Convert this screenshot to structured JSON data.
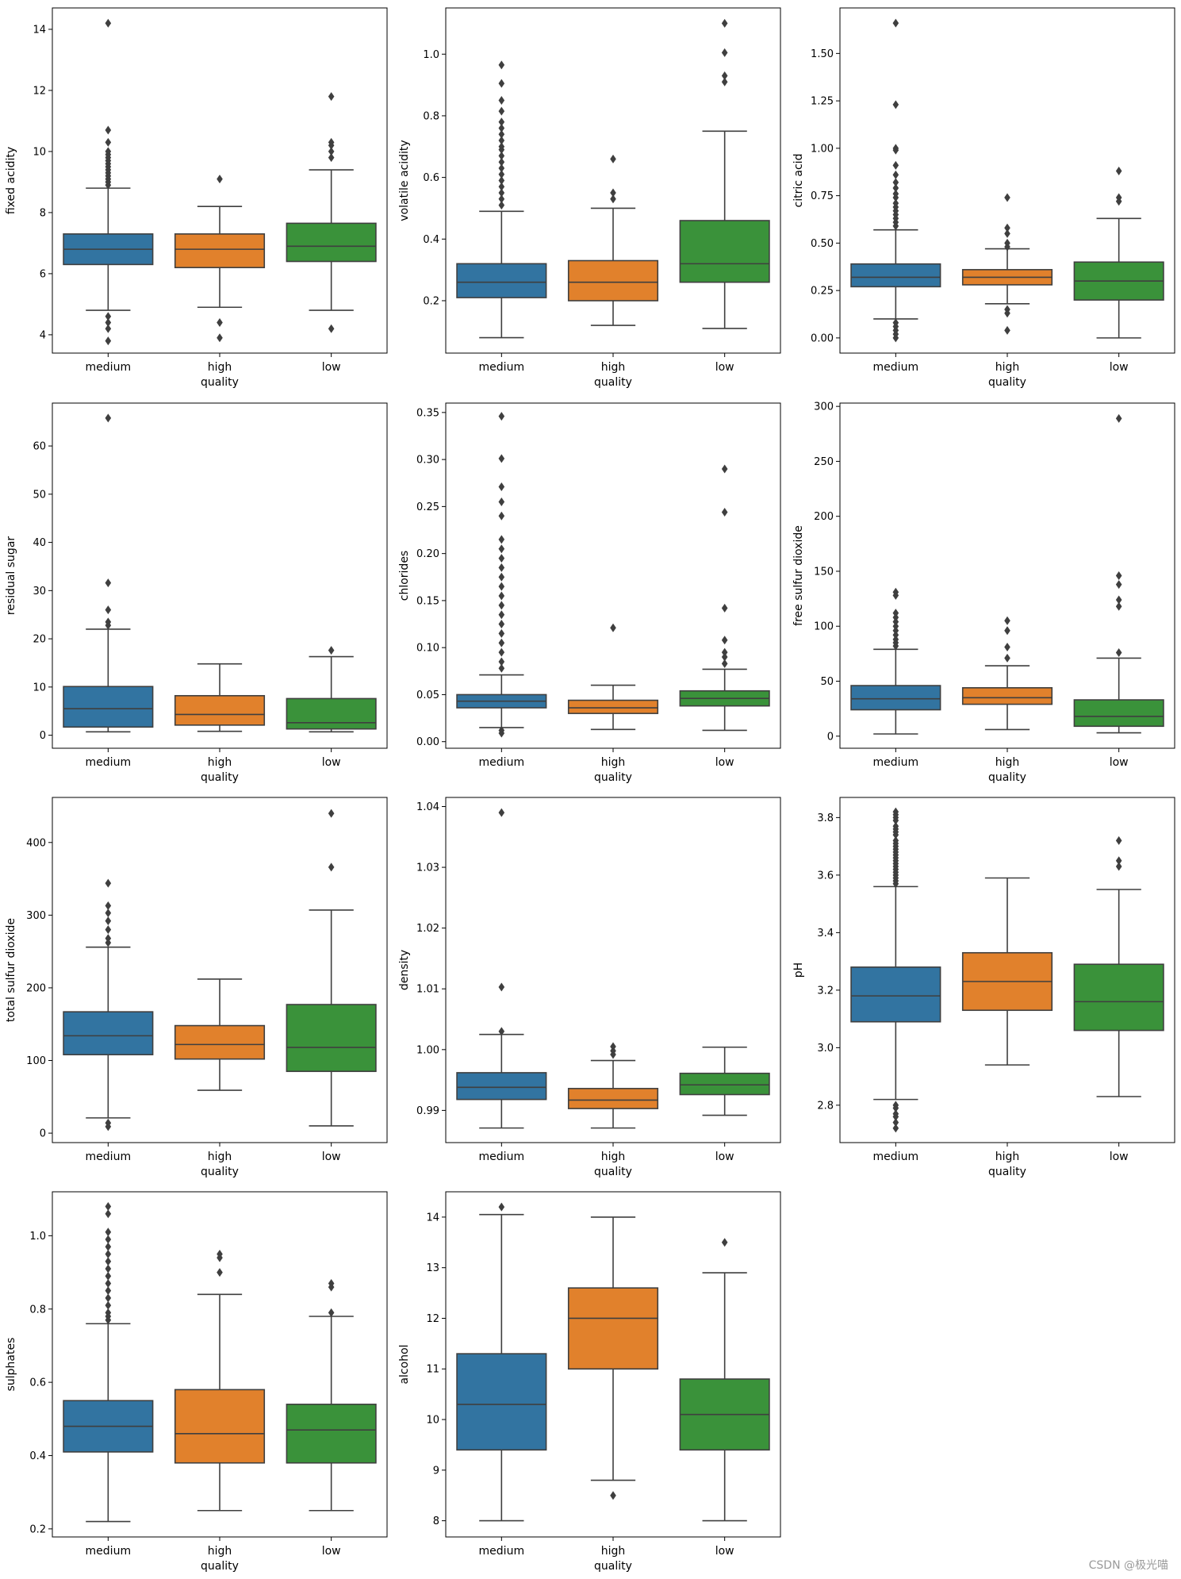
{
  "figure": {
    "watermark": "CSDN @极光喵",
    "palette": {
      "medium": "#3274a1",
      "high": "#e1812c",
      "low": "#3a923a",
      "line": "#3f3f3f",
      "frame": "#000000"
    }
  },
  "chart_data": [
    {
      "type": "box",
      "title": "",
      "xlabel": "quality",
      "ylabel": "fixed acidity",
      "categories": [
        "medium",
        "high",
        "low"
      ],
      "ylim": [
        3.4,
        14.7
      ],
      "yticks": [
        4,
        6,
        8,
        10,
        12,
        14
      ],
      "tick_labels": [
        "4",
        "6",
        "8",
        "10",
        "12",
        "14"
      ],
      "boxes": [
        {
          "q1": 6.3,
          "median": 6.8,
          "q3": 7.3,
          "whisker_low": 4.8,
          "whisker_high": 8.8,
          "outliers": [
            14.2,
            10.7,
            10.3,
            10.0,
            9.9,
            9.8,
            9.7,
            9.6,
            9.5,
            9.4,
            9.3,
            9.2,
            9.1,
            9.0,
            8.9,
            4.6,
            4.4,
            4.2,
            3.8
          ]
        },
        {
          "q1": 6.2,
          "median": 6.8,
          "q3": 7.3,
          "whisker_low": 4.9,
          "whisker_high": 8.2,
          "outliers": [
            9.1,
            4.4,
            3.9
          ]
        },
        {
          "q1": 6.4,
          "median": 6.9,
          "q3": 7.65,
          "whisker_low": 4.8,
          "whisker_high": 9.4,
          "outliers": [
            11.8,
            10.3,
            10.2,
            10.0,
            9.8,
            4.2
          ]
        }
      ]
    },
    {
      "type": "box",
      "title": "",
      "xlabel": "quality",
      "ylabel": "volatile acidity",
      "categories": [
        "medium",
        "high",
        "low"
      ],
      "ylim": [
        0.03,
        1.15
      ],
      "yticks": [
        0.2,
        0.4,
        0.6,
        0.8,
        1.0
      ],
      "tick_labels": [
        "0.2",
        "0.4",
        "0.6",
        "0.8",
        "1.0"
      ],
      "boxes": [
        {
          "q1": 0.21,
          "median": 0.26,
          "q3": 0.32,
          "whisker_low": 0.08,
          "whisker_high": 0.49,
          "outliers": [
            0.965,
            0.905,
            0.85,
            0.815,
            0.78,
            0.76,
            0.74,
            0.72,
            0.7,
            0.69,
            0.67,
            0.65,
            0.63,
            0.61,
            0.59,
            0.57,
            0.55,
            0.53,
            0.51
          ]
        },
        {
          "q1": 0.2,
          "median": 0.26,
          "q3": 0.33,
          "whisker_low": 0.12,
          "whisker_high": 0.5,
          "outliers": [
            0.66,
            0.55,
            0.53
          ]
        },
        {
          "q1": 0.26,
          "median": 0.32,
          "q3": 0.46,
          "whisker_low": 0.11,
          "whisker_high": 0.75,
          "outliers": [
            1.1,
            1.005,
            0.93,
            0.91
          ]
        }
      ]
    },
    {
      "type": "box",
      "title": "",
      "xlabel": "quality",
      "ylabel": "citric acid",
      "categories": [
        "medium",
        "high",
        "low"
      ],
      "ylim": [
        -0.08,
        1.74
      ],
      "yticks": [
        0.0,
        0.25,
        0.5,
        0.75,
        1.0,
        1.25,
        1.5
      ],
      "tick_labels": [
        "0.00",
        "0.25",
        "0.50",
        "0.75",
        "1.00",
        "1.25",
        "1.50"
      ],
      "boxes": [
        {
          "q1": 0.27,
          "median": 0.32,
          "q3": 0.39,
          "whisker_low": 0.1,
          "whisker_high": 0.57,
          "outliers": [
            1.66,
            1.23,
            1.0,
            0.99,
            0.91,
            0.86,
            0.82,
            0.79,
            0.76,
            0.74,
            0.71,
            0.69,
            0.67,
            0.65,
            0.63,
            0.61,
            0.59,
            0.08,
            0.06,
            0.04,
            0.02,
            0.0
          ]
        },
        {
          "q1": 0.28,
          "median": 0.32,
          "q3": 0.36,
          "whisker_low": 0.18,
          "whisker_high": 0.47,
          "outliers": [
            0.74,
            0.58,
            0.55,
            0.5,
            0.48,
            0.15,
            0.13,
            0.04
          ]
        },
        {
          "q1": 0.2,
          "median": 0.3,
          "q3": 0.4,
          "whisker_low": 0.0,
          "whisker_high": 0.63,
          "outliers": [
            0.88,
            0.74,
            0.72
          ]
        }
      ]
    },
    {
      "type": "box",
      "title": "",
      "xlabel": "quality",
      "ylabel": "residual sugar",
      "categories": [
        "medium",
        "high",
        "low"
      ],
      "ylim": [
        -2.7,
        68.9
      ],
      "yticks": [
        0,
        10,
        20,
        30,
        40,
        50,
        60
      ],
      "tick_labels": [
        "0",
        "10",
        "20",
        "30",
        "40",
        "50",
        "60"
      ],
      "boxes": [
        {
          "q1": 1.7,
          "median": 5.5,
          "q3": 10.1,
          "whisker_low": 0.7,
          "whisker_high": 22.0,
          "outliers": [
            65.8,
            31.6,
            26.0,
            23.5,
            22.8
          ]
        },
        {
          "q1": 2.1,
          "median": 4.3,
          "q3": 8.2,
          "whisker_low": 0.8,
          "whisker_high": 14.8,
          "outliers": []
        },
        {
          "q1": 1.3,
          "median": 2.6,
          "q3": 7.6,
          "whisker_low": 0.7,
          "whisker_high": 16.3,
          "outliers": [
            17.6
          ]
        }
      ]
    },
    {
      "type": "box",
      "title": "",
      "xlabel": "quality",
      "ylabel": "chlorides",
      "categories": [
        "medium",
        "high",
        "low"
      ],
      "ylim": [
        -0.007,
        0.36
      ],
      "yticks": [
        0.0,
        0.05,
        0.1,
        0.15,
        0.2,
        0.25,
        0.3,
        0.35
      ],
      "tick_labels": [
        "0.00",
        "0.05",
        "0.10",
        "0.15",
        "0.20",
        "0.25",
        "0.30",
        "0.35"
      ],
      "boxes": [
        {
          "q1": 0.036,
          "median": 0.043,
          "q3": 0.05,
          "whisker_low": 0.015,
          "whisker_high": 0.071,
          "outliers": [
            0.346,
            0.301,
            0.271,
            0.255,
            0.24,
            0.215,
            0.205,
            0.195,
            0.185,
            0.175,
            0.165,
            0.155,
            0.145,
            0.135,
            0.125,
            0.115,
            0.105,
            0.095,
            0.085,
            0.078,
            0.012,
            0.009
          ]
        },
        {
          "q1": 0.03,
          "median": 0.036,
          "q3": 0.044,
          "whisker_low": 0.013,
          "whisker_high": 0.06,
          "outliers": [
            0.121
          ]
        },
        {
          "q1": 0.038,
          "median": 0.046,
          "q3": 0.054,
          "whisker_low": 0.012,
          "whisker_high": 0.077,
          "outliers": [
            0.29,
            0.244,
            0.142,
            0.108,
            0.095,
            0.09,
            0.083
          ]
        }
      ]
    },
    {
      "type": "box",
      "title": "",
      "xlabel": "quality",
      "ylabel": "free sulfur dioxide",
      "categories": [
        "medium",
        "high",
        "low"
      ],
      "ylim": [
        -11,
        303
      ],
      "yticks": [
        0,
        50,
        100,
        150,
        200,
        250,
        300
      ],
      "tick_labels": [
        "0",
        "50",
        "100",
        "150",
        "200",
        "250",
        "300"
      ],
      "boxes": [
        {
          "q1": 24,
          "median": 34,
          "q3": 46,
          "whisker_low": 2,
          "whisker_high": 79,
          "outliers": [
            131,
            128,
            112,
            108,
            104,
            100,
            96,
            92,
            88,
            85,
            82
          ]
        },
        {
          "q1": 29,
          "median": 35,
          "q3": 44,
          "whisker_low": 6,
          "whisker_high": 64,
          "outliers": [
            105,
            96,
            81,
            71
          ]
        },
        {
          "q1": 9,
          "median": 18,
          "q3": 33,
          "whisker_low": 3,
          "whisker_high": 71,
          "outliers": [
            289,
            146,
            138,
            124,
            118,
            76
          ]
        }
      ]
    },
    {
      "type": "box",
      "title": "",
      "xlabel": "quality",
      "ylabel": "total sulfur dioxide",
      "categories": [
        "medium",
        "high",
        "low"
      ],
      "ylim": [
        -13,
        462
      ],
      "yticks": [
        0,
        100,
        200,
        300,
        400
      ],
      "tick_labels": [
        "0",
        "100",
        "200",
        "300",
        "400"
      ],
      "boxes": [
        {
          "q1": 108,
          "median": 134,
          "q3": 167,
          "whisker_low": 21,
          "whisker_high": 256,
          "outliers": [
            344,
            313,
            303,
            292,
            280,
            268,
            262,
            14,
            9
          ]
        },
        {
          "q1": 102,
          "median": 122,
          "q3": 148,
          "whisker_low": 59,
          "whisker_high": 212,
          "outliers": []
        },
        {
          "q1": 85,
          "median": 118,
          "q3": 177,
          "whisker_low": 10,
          "whisker_high": 307,
          "outliers": [
            440,
            366
          ]
        }
      ]
    },
    {
      "type": "box",
      "title": "",
      "xlabel": "quality",
      "ylabel": "density",
      "categories": [
        "medium",
        "high",
        "low"
      ],
      "ylim": [
        0.9847,
        1.0415
      ],
      "yticks": [
        0.99,
        1.0,
        1.01,
        1.02,
        1.03,
        1.04
      ],
      "tick_labels": [
        "0.99",
        "1.00",
        "1.01",
        "1.02",
        "1.03",
        "1.04"
      ],
      "boxes": [
        {
          "q1": 0.9918,
          "median": 0.9938,
          "q3": 0.9962,
          "whisker_low": 0.9871,
          "whisker_high": 1.0025,
          "outliers": [
            1.039,
            1.0103,
            1.003
          ]
        },
        {
          "q1": 0.9903,
          "median": 0.9917,
          "q3": 0.9936,
          "whisker_low": 0.9871,
          "whisker_high": 0.9982,
          "outliers": [
            1.0005,
            0.9998,
            0.9992
          ]
        },
        {
          "q1": 0.9926,
          "median": 0.9942,
          "q3": 0.9961,
          "whisker_low": 0.9892,
          "whisker_high": 1.0004,
          "outliers": []
        }
      ]
    },
    {
      "type": "box",
      "title": "",
      "xlabel": "quality",
      "ylabel": "pH",
      "categories": [
        "medium",
        "high",
        "low"
      ],
      "ylim": [
        2.67,
        3.87
      ],
      "yticks": [
        2.8,
        3.0,
        3.2,
        3.4,
        3.6,
        3.8
      ],
      "tick_labels": [
        "2.8",
        "3.0",
        "3.2",
        "3.4",
        "3.6",
        "3.8"
      ],
      "boxes": [
        {
          "q1": 3.09,
          "median": 3.18,
          "q3": 3.28,
          "whisker_low": 2.82,
          "whisker_high": 3.56,
          "outliers": [
            3.82,
            3.81,
            3.8,
            3.79,
            3.77,
            3.76,
            3.75,
            3.74,
            3.72,
            3.71,
            3.7,
            3.69,
            3.68,
            3.67,
            3.66,
            3.65,
            3.64,
            3.63,
            3.62,
            3.61,
            3.6,
            3.59,
            3.58,
            3.57,
            2.8,
            2.79,
            2.77,
            2.76,
            2.74,
            2.72
          ]
        },
        {
          "q1": 3.13,
          "median": 3.23,
          "q3": 3.33,
          "whisker_low": 2.94,
          "whisker_high": 3.59,
          "outliers": []
        },
        {
          "q1": 3.06,
          "median": 3.16,
          "q3": 3.29,
          "whisker_low": 2.83,
          "whisker_high": 3.55,
          "outliers": [
            3.72,
            3.65,
            3.63
          ]
        }
      ]
    },
    {
      "type": "box",
      "title": "",
      "xlabel": "quality",
      "ylabel": "sulphates",
      "categories": [
        "medium",
        "high",
        "low"
      ],
      "ylim": [
        0.178,
        1.12
      ],
      "yticks": [
        0.2,
        0.4,
        0.6,
        0.8,
        1.0
      ],
      "tick_labels": [
        "0.2",
        "0.4",
        "0.6",
        "0.8",
        "1.0"
      ],
      "boxes": [
        {
          "q1": 0.41,
          "median": 0.48,
          "q3": 0.55,
          "whisker_low": 0.22,
          "whisker_high": 0.76,
          "outliers": [
            1.08,
            1.06,
            1.01,
            0.99,
            0.97,
            0.95,
            0.93,
            0.91,
            0.89,
            0.87,
            0.85,
            0.83,
            0.81,
            0.79,
            0.78,
            0.77
          ]
        },
        {
          "q1": 0.38,
          "median": 0.46,
          "q3": 0.58,
          "whisker_low": 0.25,
          "whisker_high": 0.84,
          "outliers": [
            0.95,
            0.94,
            0.9
          ]
        },
        {
          "q1": 0.38,
          "median": 0.47,
          "q3": 0.54,
          "whisker_low": 0.25,
          "whisker_high": 0.78,
          "outliers": [
            0.87,
            0.86,
            0.79
          ]
        }
      ]
    },
    {
      "type": "box",
      "title": "",
      "xlabel": "quality",
      "ylabel": "alcohol",
      "categories": [
        "medium",
        "high",
        "low"
      ],
      "ylim": [
        7.68,
        14.5
      ],
      "yticks": [
        8,
        9,
        10,
        11,
        12,
        13,
        14
      ],
      "tick_labels": [
        "8",
        "9",
        "10",
        "11",
        "12",
        "13",
        "14"
      ],
      "boxes": [
        {
          "q1": 9.4,
          "median": 10.3,
          "q3": 11.3,
          "whisker_low": 8.0,
          "whisker_high": 14.05,
          "outliers": [
            14.2
          ]
        },
        {
          "q1": 11.0,
          "median": 12.0,
          "q3": 12.6,
          "whisker_low": 8.8,
          "whisker_high": 14.0,
          "outliers": [
            8.5
          ]
        },
        {
          "q1": 9.4,
          "median": 10.1,
          "q3": 10.8,
          "whisker_low": 8.0,
          "whisker_high": 12.9,
          "outliers": [
            13.5
          ]
        }
      ]
    }
  ]
}
